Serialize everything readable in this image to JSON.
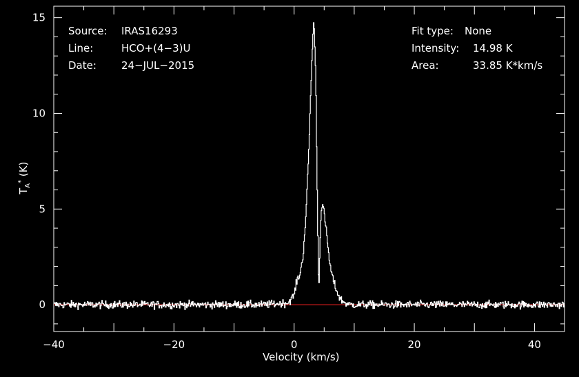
{
  "header": {
    "source_label": "Source:",
    "source_value": "IRAS16293",
    "line_label": "Line:",
    "line_value": "HCO+(4−3)U",
    "date_label": "Date:",
    "date_value": "24−JUL−2015",
    "fit_label": "Fit type:",
    "fit_value": "None",
    "intensity_label": "Intensity:",
    "intensity_value": "14.98 K",
    "area_label": "Area:",
    "area_value": "33.85 K*km/s"
  },
  "chart_data": {
    "type": "line",
    "xlabel": "Velocity (km/s)",
    "ylabel": "T_A^* (K)",
    "xlim": [
      -40,
      45
    ],
    "ylim": [
      -1.4,
      15.6
    ],
    "x_ticks": [
      -40,
      -20,
      0,
      20,
      40
    ],
    "y_ticks": [
      0,
      5,
      10,
      15
    ],
    "x_tick_labels": [
      "−40",
      "−20",
      "0",
      "20",
      "40"
    ],
    "y_tick_labels": [
      "0",
      "5",
      "10",
      "15"
    ],
    "baseline": {
      "y": 0,
      "color": "#ff2020"
    },
    "series": [
      {
        "line_color": "#ffffff",
        "x": [
          -40,
          -30,
          -20,
          -10,
          -5,
          -1,
          0,
          0.5,
          1,
          1.5,
          2,
          2.5,
          3,
          3.3,
          3.6,
          3.85,
          4.1,
          4.3,
          4.5,
          4.8,
          5.2,
          5.6,
          6,
          6.5,
          7,
          7.5,
          8,
          8.5,
          9,
          10,
          12,
          20,
          30,
          45
        ],
        "y": [
          0,
          0,
          0,
          0,
          0,
          0.1,
          0.5,
          1.3,
          1.6,
          2.6,
          4.8,
          8.5,
          13.2,
          14.98,
          12.0,
          6.0,
          0.4,
          3.2,
          5.0,
          5.2,
          4.3,
          3.1,
          2.0,
          1.3,
          0.8,
          0.4,
          0.2,
          0.1,
          0,
          0,
          0,
          0,
          0,
          0
        ]
      }
    ],
    "noise_rms": 0.2,
    "channel_width_kms": 0.1,
    "grid": false
  }
}
